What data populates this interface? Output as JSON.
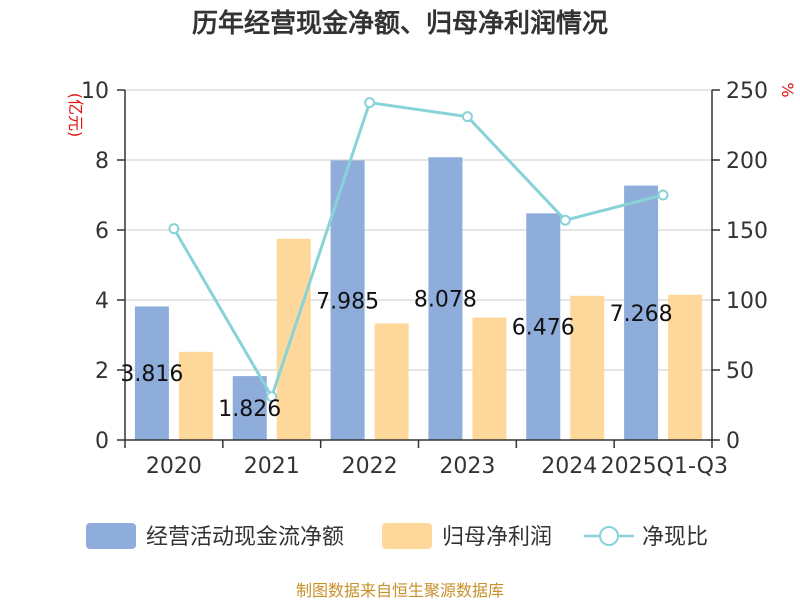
{
  "chart_data": {
    "type": "bar",
    "title": "历年经营现金净额、归母净利润情况",
    "categories": [
      "2020",
      "2021",
      "2022",
      "2023",
      "2024",
      "2025Q1-Q3"
    ],
    "y_left": {
      "unit": "(亿元)",
      "ylim": [
        0,
        10
      ],
      "ticks": [
        0,
        2,
        4,
        6,
        8,
        10
      ]
    },
    "y_right": {
      "unit": "%",
      "ylim": [
        0,
        250
      ],
      "ticks": [
        0,
        50,
        100,
        150,
        200,
        250
      ]
    },
    "series": [
      {
        "name": "经营活动现金流净额",
        "kind": "bar",
        "axis": "left",
        "color": "#8eaddb",
        "values": [
          3.816,
          1.826,
          7.985,
          8.078,
          6.476,
          7.268
        ],
        "labels": [
          "3.816",
          "1.826",
          "7.985",
          "8.078",
          "6.476",
          "7.268"
        ]
      },
      {
        "name": "归母净利润",
        "kind": "bar",
        "axis": "left",
        "color": "#fed89b",
        "values": [
          2.52,
          5.75,
          3.33,
          3.5,
          4.12,
          4.15
        ]
      },
      {
        "name": "净现比",
        "kind": "line",
        "axis": "right",
        "color": "#88d3d8",
        "values": [
          151,
          31,
          241,
          231,
          157,
          175
        ]
      }
    ],
    "grid": true,
    "legend_position": "bottom",
    "source": "制图数据来自恒生聚源数据库"
  }
}
